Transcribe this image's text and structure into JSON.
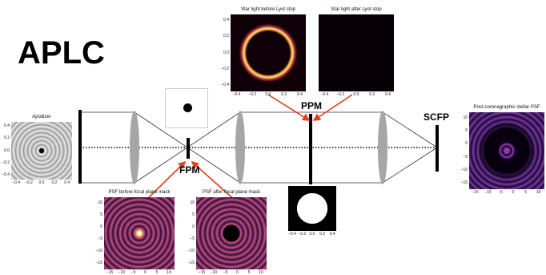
{
  "title": "APLC",
  "labels": {
    "fpm": "FPM",
    "ppm": "PPM",
    "scfp": "SCFP"
  },
  "panels": [
    {
      "title": "Apodizer",
      "xticks": [
        "−0.4",
        "−0.2",
        "0.0",
        "0.2",
        "0.4"
      ],
      "yticks": [
        "0.4",
        "0.2",
        "0.0",
        "−0.2",
        "−0.4"
      ]
    },
    {
      "title": "Star light before Lyot stop",
      "xticks": [
        "−0.4",
        "−0.2",
        "0.0",
        "0.2",
        "0.4"
      ],
      "yticks": [
        "0.4",
        "0.2",
        "0.0",
        "−0.2",
        "−0.4"
      ]
    },
    {
      "title": "Star light after Lyot stop",
      "xticks": [
        "−0.4",
        "−0.2",
        "0.0",
        "0.2",
        "0.4"
      ],
      "yticks": []
    },
    {
      "title": "PSF before focal plane mask",
      "xticks": [
        "−15",
        "−10",
        "−5",
        "0",
        "5",
        "10"
      ],
      "yticks": [
        "10",
        "5",
        "0",
        "−5",
        "−10",
        "−15"
      ]
    },
    {
      "title": "PSF after focal plane mask",
      "xticks": [
        "−15",
        "−10",
        "−5",
        "0",
        "5",
        "10"
      ],
      "yticks": [
        "10",
        "5",
        "0",
        "−5",
        "−10",
        "−15"
      ]
    },
    {
      "title": "Post-coronagraphic stellar PSF",
      "xticks": [
        "−15",
        "−10",
        "−5",
        "0",
        "5",
        "10"
      ],
      "yticks": [
        "10",
        "5",
        "0",
        "−5",
        "−10",
        "−15"
      ]
    },
    {
      "title": "",
      "xticks": [
        "−0.4",
        "−0.2",
        "0.0",
        "0.2",
        "0.4"
      ],
      "yticks": []
    }
  ]
}
